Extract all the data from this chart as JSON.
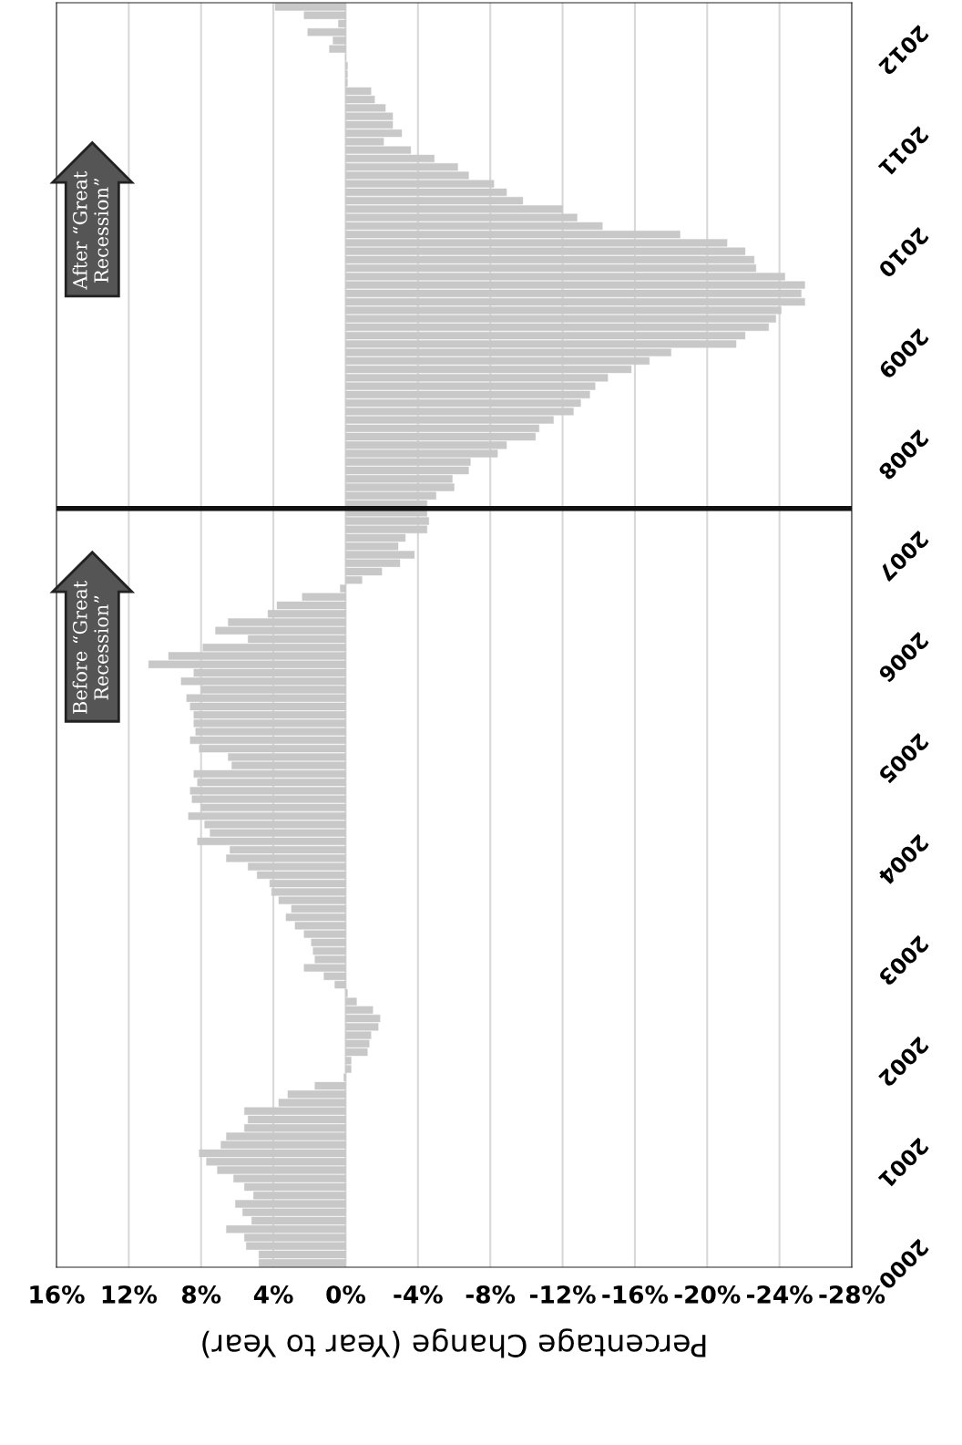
{
  "chart_data": {
    "type": "bar",
    "orientation": "horizontal",
    "xlabel": "Percentage Change (Year to Year)",
    "x": [
      "2012-06",
      "2012-05",
      "2012-04",
      "2012-03",
      "2012-02",
      "2012-01",
      "2011-12",
      "2011-11",
      "2011-10",
      "2011-09",
      "2011-08",
      "2011-07",
      "2011-06",
      "2011-05",
      "2011-04",
      "2011-03",
      "2011-02",
      "2011-01",
      "2010-12",
      "2010-11",
      "2010-10",
      "2010-09",
      "2010-08",
      "2010-07",
      "2010-06",
      "2010-05",
      "2010-04",
      "2010-03",
      "2010-02",
      "2010-01",
      "2009-12",
      "2009-11",
      "2009-10",
      "2009-09",
      "2009-08",
      "2009-07",
      "2009-06",
      "2009-05",
      "2009-04",
      "2009-03",
      "2009-02",
      "2009-01",
      "2008-12",
      "2008-11",
      "2008-10",
      "2008-09",
      "2008-08",
      "2008-07",
      "2008-06",
      "2008-05",
      "2008-04",
      "2008-03",
      "2008-02",
      "2008-01",
      "2007-12",
      "2007-11",
      "2007-10",
      "2007-09",
      "2007-08",
      "2007-07",
      "2007-06",
      "2007-05",
      "2007-04",
      "2007-03",
      "2007-02",
      "2007-01",
      "2006-12",
      "2006-11",
      "2006-10",
      "2006-09",
      "2006-08",
      "2006-07",
      "2006-06",
      "2006-05",
      "2006-04",
      "2006-03",
      "2006-02",
      "2006-01",
      "2005-12",
      "2005-11",
      "2005-10",
      "2005-09",
      "2005-08",
      "2005-07",
      "2005-06",
      "2005-05",
      "2005-04",
      "2005-03",
      "2005-02",
      "2005-01",
      "2004-12",
      "2004-11",
      "2004-10",
      "2004-09",
      "2004-08",
      "2004-07",
      "2004-06",
      "2004-05",
      "2004-04",
      "2004-03",
      "2004-02",
      "2004-01",
      "2003-12",
      "2003-11",
      "2003-10",
      "2003-09",
      "2003-08",
      "2003-07",
      "2003-06",
      "2003-05",
      "2003-04",
      "2003-03",
      "2003-02",
      "2003-01",
      "2002-12",
      "2002-11",
      "2002-10",
      "2002-09",
      "2002-08",
      "2002-07",
      "2002-06",
      "2002-05",
      "2002-04",
      "2002-03",
      "2002-02",
      "2002-01",
      "2001-12",
      "2001-11",
      "2001-10",
      "2001-09",
      "2001-08",
      "2001-07",
      "2001-06",
      "2001-05",
      "2001-04",
      "2001-03",
      "2001-02",
      "2001-01",
      "2000-12",
      "2000-11",
      "2000-10",
      "2000-09",
      "2000-08",
      "2000-07",
      "2000-06",
      "2000-05",
      "2000-04",
      "2000-03",
      "2000-02",
      "2000-01"
    ],
    "values": [
      3.9,
      2.3,
      0.4,
      2.1,
      0.7,
      0.9,
      0.0,
      -0.1,
      -0.1,
      -0.1,
      -1.4,
      -1.6,
      -2.2,
      -2.6,
      -2.6,
      -3.1,
      -2.1,
      -3.6,
      -4.9,
      -6.2,
      -6.8,
      -8.2,
      -8.9,
      -9.8,
      -12.0,
      -12.8,
      -14.2,
      -18.5,
      -21.1,
      -22.1,
      -22.6,
      -22.7,
      -24.3,
      -25.4,
      -25.2,
      -25.4,
      -24.1,
      -23.8,
      -23.4,
      -22.1,
      -21.6,
      -18.0,
      -16.8,
      -15.8,
      -14.5,
      -13.8,
      -13.5,
      -13.0,
      -12.6,
      -11.5,
      -10.7,
      -10.5,
      -8.9,
      -8.4,
      -6.9,
      -6.8,
      -5.9,
      -6.0,
      -5.0,
      -4.5,
      -4.5,
      -4.6,
      -4.5,
      -3.3,
      -2.9,
      -3.8,
      -3.0,
      -2.0,
      -0.9,
      0.3,
      2.4,
      3.8,
      4.3,
      6.5,
      7.2,
      5.4,
      7.9,
      9.8,
      10.9,
      8.4,
      9.1,
      8.0,
      8.8,
      8.6,
      8.4,
      8.4,
      8.3,
      8.6,
      8.1,
      6.5,
      6.3,
      8.4,
      8.2,
      8.6,
      8.5,
      8.0,
      8.7,
      7.8,
      7.5,
      8.2,
      6.4,
      6.6,
      5.4,
      4.9,
      4.2,
      4.1,
      3.7,
      3.0,
      3.3,
      2.8,
      2.3,
      1.9,
      1.8,
      1.7,
      2.3,
      1.2,
      0.6,
      -0.1,
      -0.6,
      -1.5,
      -1.9,
      -1.8,
      -1.4,
      -1.3,
      -1.2,
      -0.3,
      -0.3,
      0.1,
      1.7,
      3.2,
      3.7,
      5.6,
      5.4,
      5.6,
      6.6,
      6.9,
      8.1,
      7.7,
      7.1,
      6.2,
      5.6,
      5.1,
      6.1,
      5.7,
      5.2,
      6.6,
      5.6,
      5.5,
      4.8,
      4.8
    ],
    "color": "#c8c8c8",
    "xlim": [
      16,
      -28
    ],
    "xticks": [
      {
        "value": 16,
        "label": "16%"
      },
      {
        "value": 12,
        "label": "12%"
      },
      {
        "value": 8,
        "label": "8%"
      },
      {
        "value": 4,
        "label": "4%"
      },
      {
        "value": 0,
        "label": "0%"
      },
      {
        "value": -4,
        "label": "-4%"
      },
      {
        "value": -8,
        "label": "-8%"
      },
      {
        "value": -12,
        "label": "-12%"
      },
      {
        "value": -16,
        "label": "-16%"
      },
      {
        "value": -20,
        "label": "-20%"
      },
      {
        "value": -24,
        "label": "-24%"
      },
      {
        "value": -28,
        "label": "-28%"
      }
    ],
    "ylim": [
      "1999-12-16",
      "2012-06-16"
    ],
    "yticks": [
      "2000",
      "2001",
      "2002",
      "2003",
      "2004",
      "2005",
      "2006",
      "2007",
      "2008",
      "2009",
      "2010",
      "2011",
      "2012"
    ],
    "grid": "x",
    "ref_lines": [
      {
        "axis": "y",
        "value": "2007-06-16",
        "color": "#111111"
      }
    ],
    "annotations": [
      "Before “Great\nRecession”",
      "After “Great\nRecession”"
    ]
  }
}
